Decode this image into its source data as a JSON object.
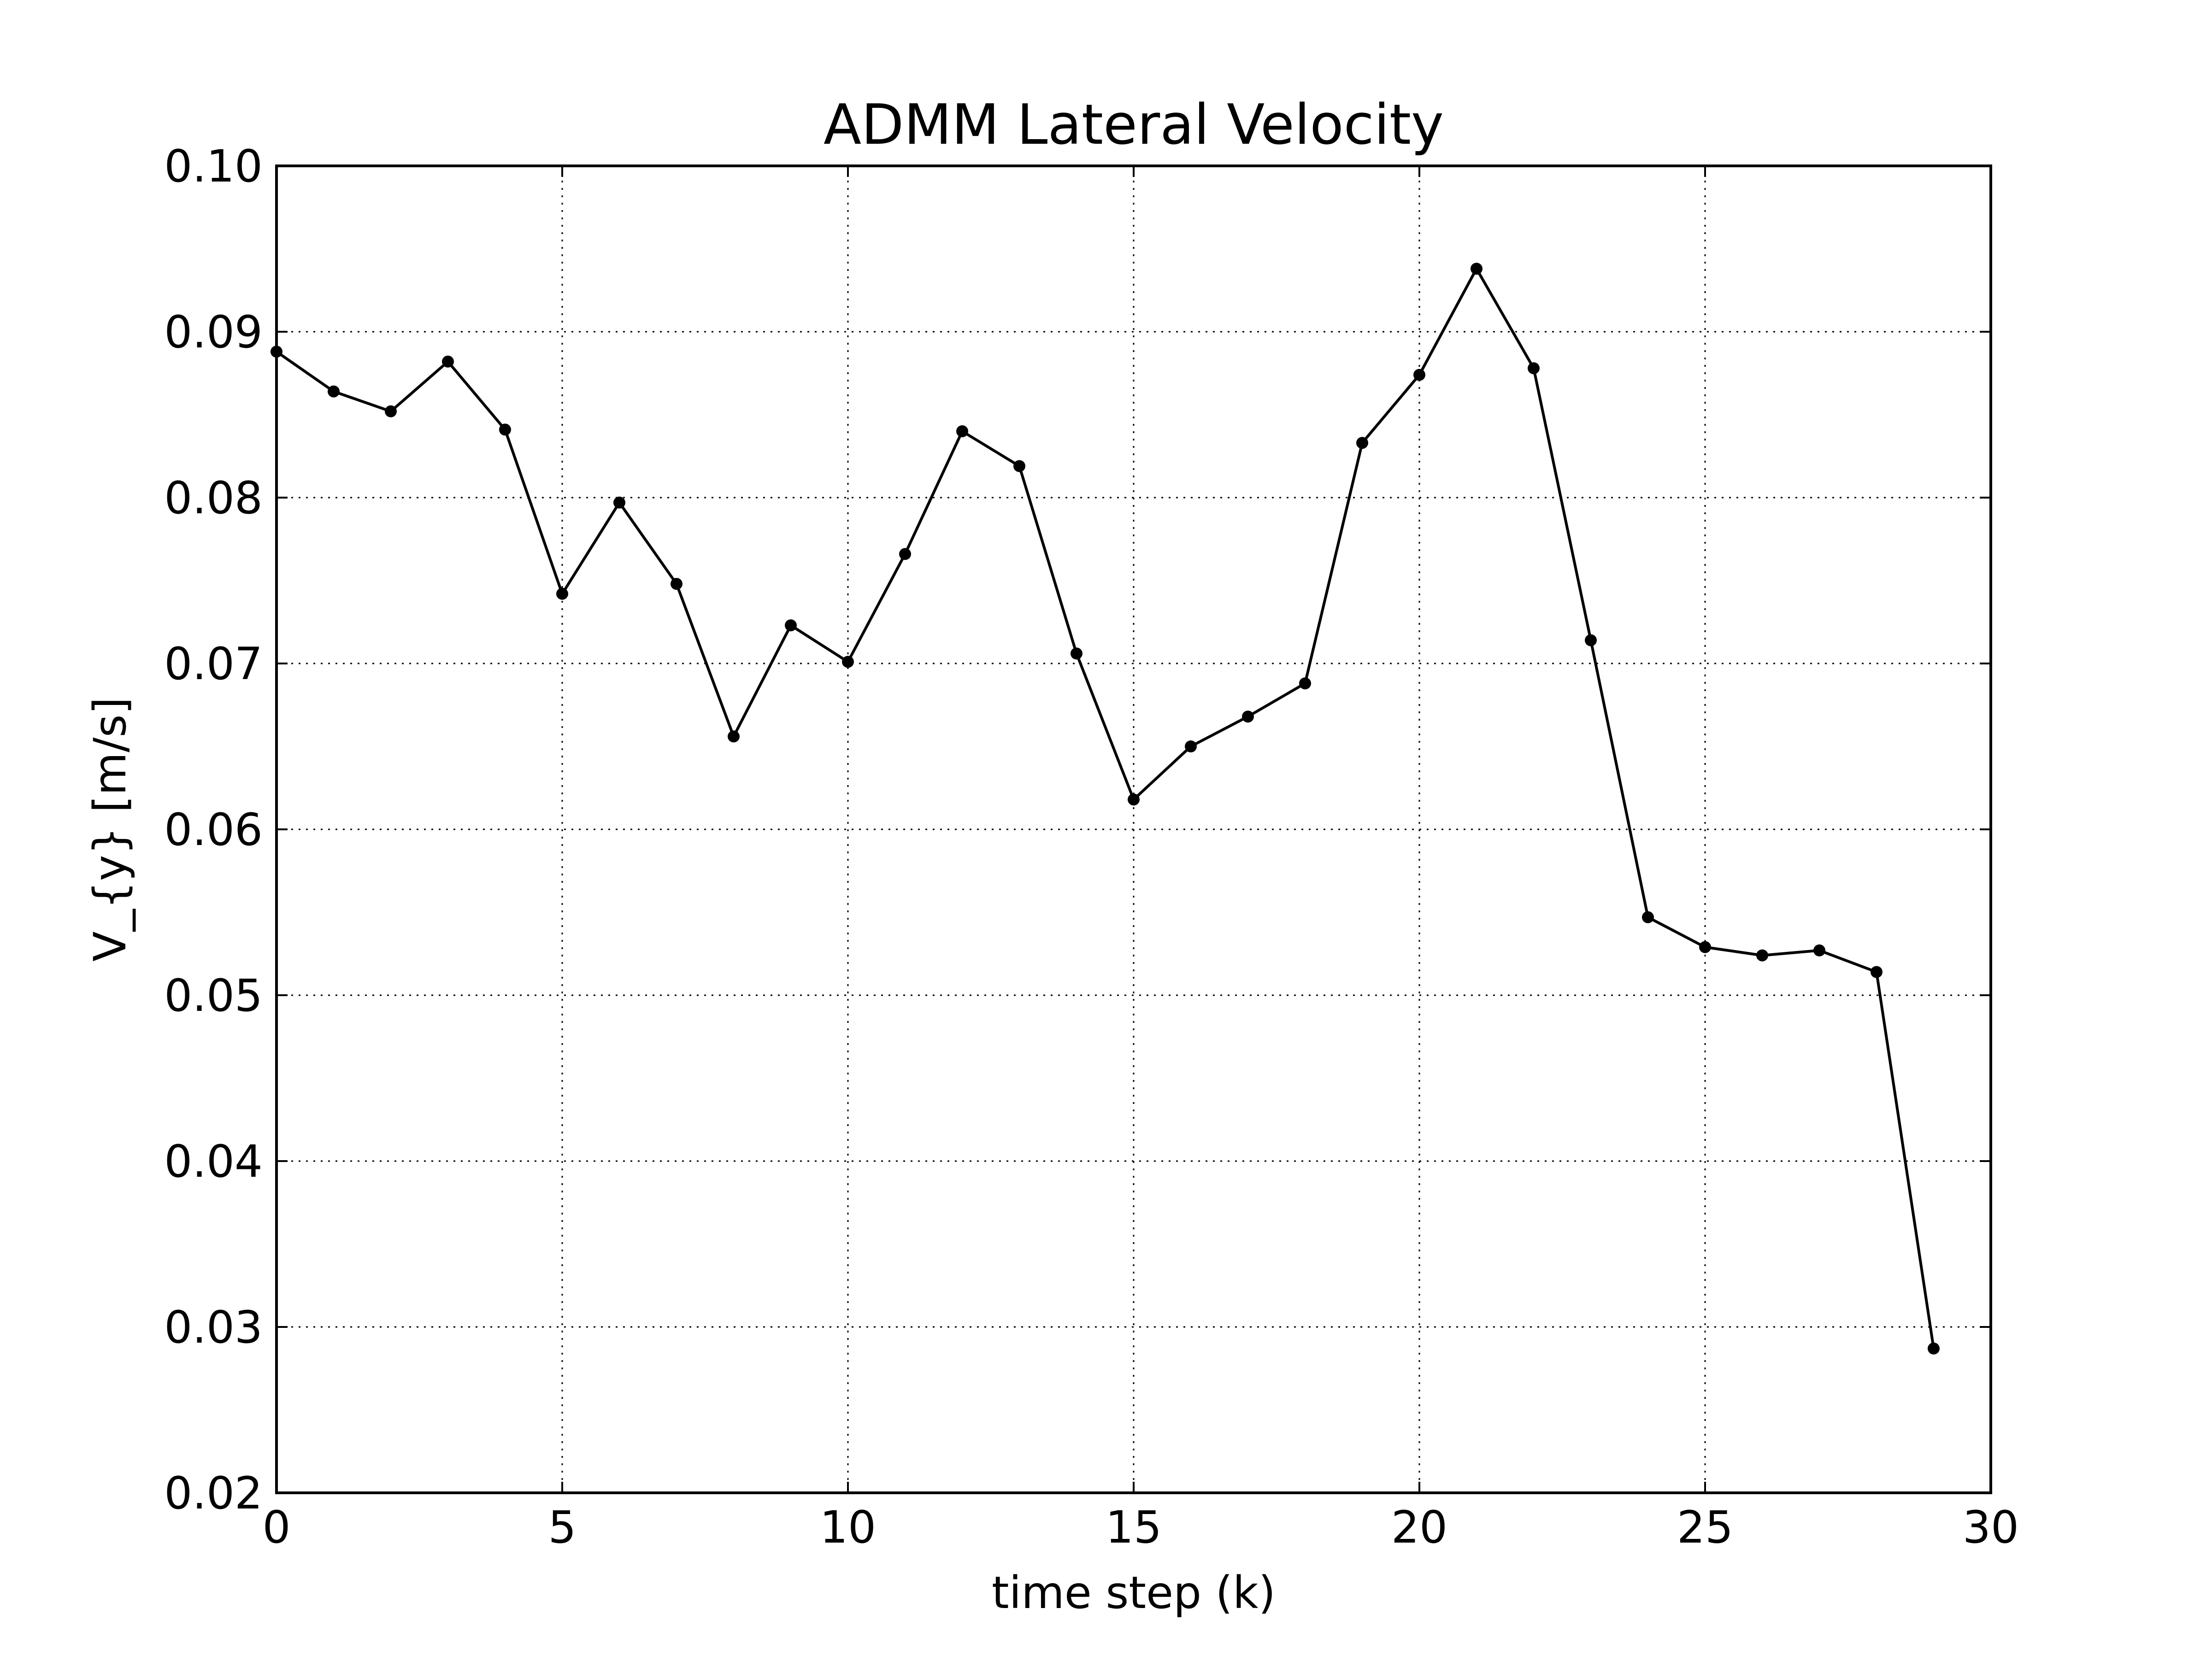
{
  "chart_data": {
    "type": "line",
    "title": "ADMM Lateral Velocity",
    "xlabel": "time step (k)",
    "ylabel": "V_{y} [m/s]",
    "xlim": [
      0,
      30
    ],
    "ylim": [
      0.02,
      0.1
    ],
    "xticks": [
      0,
      5,
      10,
      15,
      20,
      25,
      30
    ],
    "xtick_labels": [
      "0",
      "5",
      "10",
      "15",
      "20",
      "25",
      "30"
    ],
    "yticks": [
      0.02,
      0.03,
      0.04,
      0.05,
      0.06,
      0.07,
      0.08,
      0.09,
      0.1
    ],
    "ytick_labels": [
      "0.02",
      "0.03",
      "0.04",
      "0.05",
      "0.06",
      "0.07",
      "0.08",
      "0.09",
      "0.10"
    ],
    "grid": true,
    "series": [
      {
        "color": "#000000",
        "marker": "circle",
        "x": [
          0,
          1,
          2,
          3,
          4,
          5,
          6,
          7,
          8,
          9,
          10,
          11,
          12,
          13,
          14,
          15,
          16,
          17,
          18,
          19,
          20,
          21,
          22,
          23,
          24,
          25,
          26,
          27,
          28,
          29
        ],
        "y": [
          0.0888,
          0.0864,
          0.0852,
          0.0882,
          0.0841,
          0.0742,
          0.0797,
          0.0748,
          0.0656,
          0.0723,
          0.0701,
          0.0766,
          0.084,
          0.0819,
          0.0706,
          0.0618,
          0.065,
          0.0668,
          0.0688,
          0.0833,
          0.0874,
          0.0938,
          0.0878,
          0.0714,
          0.0547,
          0.0529,
          0.0524,
          0.0527,
          0.0514,
          0.0287
        ]
      }
    ]
  }
}
